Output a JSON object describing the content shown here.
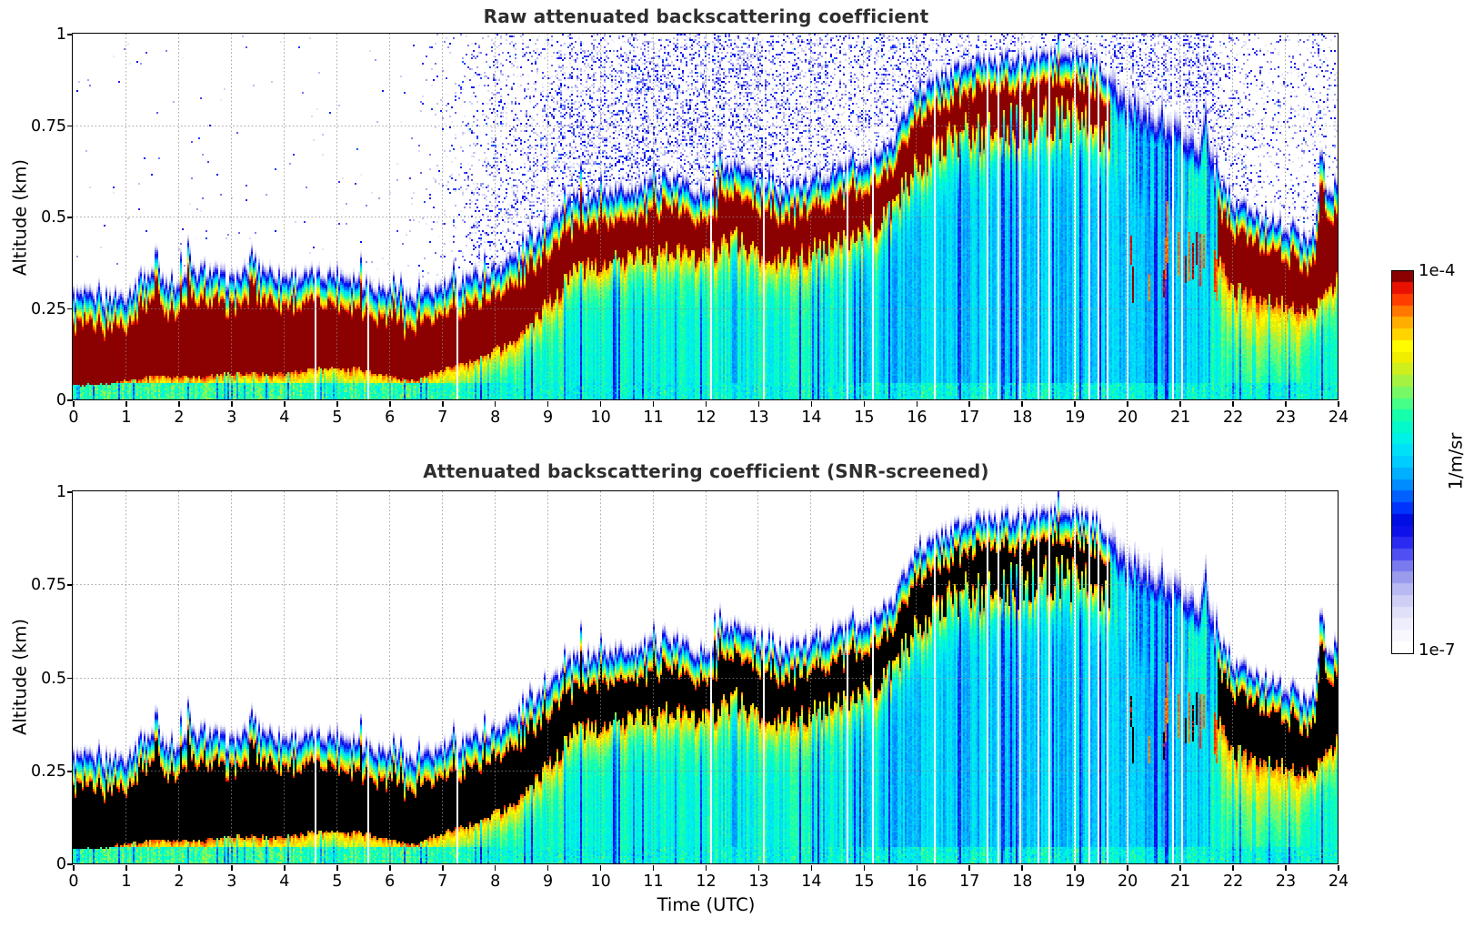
{
  "figure": {
    "panel1_title": "Raw attenuated backscattering coefficient",
    "panel2_title": "Attenuated backscattering coefficient (SNR-screened)",
    "xlabel": "Time (UTC)",
    "ylabel": "Altitude (km)"
  },
  "axes": {
    "x_ticks": [
      0,
      1,
      2,
      3,
      4,
      5,
      6,
      7,
      8,
      9,
      10,
      11,
      12,
      13,
      14,
      15,
      16,
      17,
      18,
      19,
      20,
      21,
      22,
      23,
      24
    ],
    "x_tick_labels": [
      "0",
      "1",
      "2",
      "3",
      "4",
      "5",
      "6",
      "7",
      "8",
      "9",
      "10",
      "11",
      "12",
      "13",
      "14",
      "15",
      "16",
      "17",
      "18",
      "19",
      "20",
      "21",
      "22",
      "23",
      "24"
    ],
    "y_ticks": [
      0,
      0.25,
      0.5,
      0.75,
      1
    ],
    "y_tick_labels": [
      "0",
      "0.25",
      "0.5",
      "0.75",
      "1"
    ],
    "grid_color": "#999999",
    "grid_style": "dotted"
  },
  "colorbar": {
    "top_label": "1e-4",
    "bottom_label": "1e-7",
    "units_label": "1/m/sr",
    "n_segments": 33
  },
  "chart_data": [
    {
      "type": "heatmap",
      "title": "Raw attenuated backscattering coefficient",
      "xlabel": "Time (UTC)",
      "ylabel": "Altitude (km)",
      "x_range": [
        0,
        24
      ],
      "y_range": [
        0,
        1
      ],
      "value_units": "1/m/sr",
      "value_scale": "log10",
      "value_range": [
        1e-07,
        0.0001
      ],
      "saturated_color": "#8b0000",
      "legend_position": "right-colorbar",
      "grid": "hourly vertical and 0.25-km horizontal dotted gray lines",
      "colormap_stops": [
        [
          0.0,
          "#ffffff"
        ],
        [
          0.05,
          "#f2f2fc"
        ],
        [
          0.1,
          "#dedef9"
        ],
        [
          0.14,
          "#c6c6f4"
        ],
        [
          0.18,
          "#a4a4ee"
        ],
        [
          0.22,
          "#7878f0"
        ],
        [
          0.26,
          "#4343f2"
        ],
        [
          0.3,
          "#1515ee"
        ],
        [
          0.34,
          "#0008e0"
        ],
        [
          0.38,
          "#0038ff"
        ],
        [
          0.42,
          "#0074ff"
        ],
        [
          0.46,
          "#00a6ff"
        ],
        [
          0.5,
          "#00ccff"
        ],
        [
          0.54,
          "#00e8f4"
        ],
        [
          0.58,
          "#00f8d8"
        ],
        [
          0.62,
          "#10ffb0"
        ],
        [
          0.66,
          "#4cff84"
        ],
        [
          0.7,
          "#8cf658"
        ],
        [
          0.74,
          "#c4ee28"
        ],
        [
          0.78,
          "#f0ec00"
        ],
        [
          0.81,
          "#ffff00"
        ],
        [
          0.84,
          "#ffd800"
        ],
        [
          0.88,
          "#ffa800"
        ],
        [
          0.91,
          "#ff7000"
        ],
        [
          0.94,
          "#ff3800"
        ],
        [
          0.97,
          "#e81000"
        ],
        [
          0.985,
          "#c00000"
        ],
        [
          1.0,
          "#8b0000"
        ]
      ],
      "series": {
        "time_utc_h": [
          0,
          0.5,
          1,
          1.5,
          2,
          2.5,
          3,
          3.5,
          4,
          4.5,
          5,
          5.5,
          6,
          6.5,
          7,
          7.5,
          8,
          8.5,
          9,
          9.5,
          10,
          10.5,
          11,
          11.5,
          12,
          12.5,
          13,
          13.5,
          14,
          14.5,
          15,
          15.5,
          16,
          16.5,
          17,
          17.5,
          18,
          18.5,
          19,
          19.5,
          20,
          20.5,
          21,
          21.5,
          22,
          22.5,
          23,
          23.5,
          24
        ],
        "layer_top_km": [
          0.26,
          0.25,
          0.26,
          0.32,
          0.29,
          0.33,
          0.3,
          0.34,
          0.31,
          0.31,
          0.32,
          0.3,
          0.27,
          0.25,
          0.28,
          0.31,
          0.33,
          0.38,
          0.46,
          0.52,
          0.54,
          0.55,
          0.56,
          0.57,
          0.54,
          0.61,
          0.57,
          0.55,
          0.57,
          0.6,
          0.61,
          0.67,
          0.81,
          0.86,
          0.89,
          0.91,
          0.9,
          0.92,
          0.91,
          0.89,
          0.81,
          0.78,
          0.74,
          0.66,
          0.52,
          0.47,
          0.45,
          0.41,
          0.58
        ],
        "strong_layer_bottom_km": [
          0.04,
          0.04,
          0.05,
          0.06,
          0.06,
          0.06,
          0.07,
          0.07,
          0.07,
          0.08,
          0.08,
          0.08,
          0.06,
          0.05,
          0.08,
          0.1,
          0.13,
          0.17,
          0.26,
          0.34,
          0.37,
          0.38,
          0.39,
          0.4,
          0.38,
          0.44,
          0.4,
          0.38,
          0.4,
          0.44,
          0.45,
          0.51,
          0.63,
          0.69,
          0.72,
          0.74,
          0.74,
          0.76,
          0.75,
          0.73,
          0.58,
          0.56,
          0.53,
          0.46,
          0.3,
          0.27,
          0.26,
          0.24,
          0.32
        ],
        "strong_layer_present": [
          1,
          1,
          1,
          1,
          1,
          1,
          1,
          1,
          1,
          1,
          1,
          1,
          1,
          1,
          1,
          1,
          1,
          1,
          1,
          1,
          1,
          1,
          1,
          1,
          1,
          1,
          1,
          1,
          1,
          1,
          1,
          1,
          1,
          1,
          1,
          1,
          1,
          1,
          1,
          1,
          0,
          0,
          0,
          0.3,
          1,
          1,
          1,
          0.9,
          1
        ],
        "noise_speckle_density": [
          0.004,
          0.004,
          0.004,
          0.006,
          0.006,
          0.006,
          0.005,
          0.005,
          0.004,
          0.004,
          0.004,
          0.004,
          0.005,
          0.01,
          0.04,
          0.12,
          0.14,
          0.16,
          0.18,
          0.22,
          0.26,
          0.26,
          0.27,
          0.27,
          0.26,
          0.26,
          0.26,
          0.23,
          0.22,
          0.22,
          0.22,
          0.21,
          0.2,
          0.18,
          0.18,
          0.18,
          0.18,
          0.18,
          0.18,
          0.2,
          0.22,
          0.25,
          0.28,
          0.3,
          0.15,
          0.11,
          0.1,
          0.12,
          0.12
        ],
        "spike_events": [
          [
            1.6,
            0.07
          ],
          [
            2.2,
            0.09
          ],
          [
            3.4,
            0.06
          ],
          [
            11.2,
            0.06
          ],
          [
            12.3,
            0.06
          ],
          [
            14.8,
            0.07
          ],
          [
            21.5,
            0.12
          ],
          [
            23.7,
            0.19
          ]
        ]
      },
      "data_gap_times_utc": [
        4.6,
        5.6,
        7.28,
        10.45,
        12.12,
        13.12,
        14.72,
        15.18,
        16.35,
        16.93,
        17.36,
        17.58,
        17.97,
        18.32,
        18.53,
        19.02,
        19.3,
        19.48,
        19.65,
        20.03,
        20.38,
        20.62,
        20.88,
        21.05
      ],
      "description": "Shallow aerosol layer (top ~0.3 km) until 08 UTC, rising to ~0.55 km by 10 UTC, lifting to a strongly scattering layer near 0.85-0.9 km between 16 and 19.6 UTC, weak cyan/blue column 19.7-21.5 UTC, renewed 0.3-0.5 km layer 21.7-24 UTC; blue speckle noise above the layer after ~7.3 UTC; white vertical data gaps."
    },
    {
      "type": "heatmap",
      "title": "Attenuated backscattering coefficient (SNR-screened)",
      "xlabel": "Time (UTC)",
      "ylabel": "Altitude (km)",
      "x_range": [
        0,
        24
      ],
      "y_range": [
        0,
        1
      ],
      "value_units": "1/m/sr",
      "value_scale": "log10",
      "value_range": [
        1e-07,
        0.0001
      ],
      "saturated_color": "#000000",
      "legend_position": "right-colorbar",
      "grid": "hourly vertical and 0.25-km horizontal dotted gray lines",
      "colormap_stops": [
        [
          0.0,
          "#ffffff"
        ],
        [
          0.05,
          "#f2f2fc"
        ],
        [
          0.1,
          "#dedef9"
        ],
        [
          0.14,
          "#c6c6f4"
        ],
        [
          0.18,
          "#a4a4ee"
        ],
        [
          0.22,
          "#7878f0"
        ],
        [
          0.26,
          "#4343f2"
        ],
        [
          0.3,
          "#1515ee"
        ],
        [
          0.34,
          "#0008e0"
        ],
        [
          0.38,
          "#0038ff"
        ],
        [
          0.42,
          "#0074ff"
        ],
        [
          0.46,
          "#00a6ff"
        ],
        [
          0.5,
          "#00ccff"
        ],
        [
          0.54,
          "#00e8f4"
        ],
        [
          0.58,
          "#00f8d8"
        ],
        [
          0.62,
          "#10ffb0"
        ],
        [
          0.66,
          "#4cff84"
        ],
        [
          0.7,
          "#8cf658"
        ],
        [
          0.74,
          "#c4ee28"
        ],
        [
          0.78,
          "#f0ec00"
        ],
        [
          0.81,
          "#ffff00"
        ],
        [
          0.84,
          "#ffd800"
        ],
        [
          0.88,
          "#ffa800"
        ],
        [
          0.91,
          "#ff7000"
        ],
        [
          0.94,
          "#ff3800"
        ],
        [
          0.97,
          "#e81000"
        ],
        [
          0.985,
          "#c00000"
        ],
        [
          1.0,
          "#8b0000"
        ]
      ],
      "series": {
        "time_utc_h": [
          0,
          0.5,
          1,
          1.5,
          2,
          2.5,
          3,
          3.5,
          4,
          4.5,
          5,
          5.5,
          6,
          6.5,
          7,
          7.5,
          8,
          8.5,
          9,
          9.5,
          10,
          10.5,
          11,
          11.5,
          12,
          12.5,
          13,
          13.5,
          14,
          14.5,
          15,
          15.5,
          16,
          16.5,
          17,
          17.5,
          18,
          18.5,
          19,
          19.5,
          20,
          20.5,
          21,
          21.5,
          22,
          22.5,
          23,
          23.5,
          24
        ],
        "layer_top_km": [
          0.26,
          0.25,
          0.26,
          0.32,
          0.29,
          0.33,
          0.3,
          0.34,
          0.31,
          0.31,
          0.32,
          0.3,
          0.27,
          0.25,
          0.28,
          0.31,
          0.33,
          0.38,
          0.46,
          0.52,
          0.54,
          0.55,
          0.56,
          0.57,
          0.54,
          0.61,
          0.57,
          0.55,
          0.57,
          0.6,
          0.61,
          0.67,
          0.81,
          0.86,
          0.89,
          0.91,
          0.9,
          0.92,
          0.91,
          0.89,
          0.81,
          0.78,
          0.74,
          0.66,
          0.52,
          0.47,
          0.45,
          0.41,
          0.58
        ],
        "strong_layer_bottom_km": [
          0.04,
          0.04,
          0.05,
          0.06,
          0.06,
          0.06,
          0.07,
          0.07,
          0.07,
          0.08,
          0.08,
          0.08,
          0.06,
          0.05,
          0.08,
          0.1,
          0.13,
          0.17,
          0.26,
          0.34,
          0.37,
          0.38,
          0.39,
          0.4,
          0.38,
          0.44,
          0.4,
          0.38,
          0.4,
          0.44,
          0.45,
          0.51,
          0.63,
          0.69,
          0.72,
          0.74,
          0.74,
          0.76,
          0.75,
          0.73,
          0.58,
          0.56,
          0.53,
          0.46,
          0.3,
          0.27,
          0.26,
          0.24,
          0.32
        ],
        "strong_layer_present": [
          1,
          1,
          1,
          1,
          1,
          1,
          1,
          1,
          1,
          1,
          1,
          1,
          1,
          1,
          1,
          1,
          1,
          1,
          1,
          1,
          1,
          1,
          1,
          1,
          1,
          1,
          1,
          1,
          1,
          1,
          1,
          1,
          1,
          1,
          1,
          1,
          1,
          1,
          1,
          1,
          0,
          0,
          0,
          0.3,
          1,
          1,
          1,
          0.9,
          1
        ],
        "noise_speckle_density": [
          0,
          0,
          0,
          0,
          0,
          0,
          0,
          0,
          0,
          0,
          0,
          0,
          0,
          0,
          0,
          0,
          0,
          0,
          0,
          0,
          0,
          0,
          0,
          0,
          0,
          0,
          0,
          0,
          0,
          0,
          0,
          0,
          0,
          0,
          0,
          0,
          0,
          0,
          0,
          0,
          0,
          0,
          0,
          0,
          0,
          0,
          0,
          0,
          0
        ],
        "spike_events": [
          [
            1.6,
            0.07
          ],
          [
            2.2,
            0.09
          ],
          [
            3.4,
            0.06
          ],
          [
            11.2,
            0.06
          ],
          [
            12.3,
            0.06
          ],
          [
            14.8,
            0.07
          ],
          [
            21.5,
            0.12
          ],
          [
            23.7,
            0.19
          ]
        ]
      },
      "data_gap_times_utc": [
        4.6,
        5.6,
        7.28,
        10.45,
        12.12,
        13.12,
        14.72,
        15.18,
        16.35,
        16.93,
        17.36,
        17.58,
        17.97,
        18.32,
        18.53,
        19.02,
        19.3,
        19.48,
        19.65,
        20.03,
        20.38,
        20.62,
        20.88,
        21.05
      ],
      "description": "Same field after SNR screening: background noise above the layer removed (white); saturated layer core rendered black; thin blue/lavender fringe outlines the layer top."
    }
  ]
}
